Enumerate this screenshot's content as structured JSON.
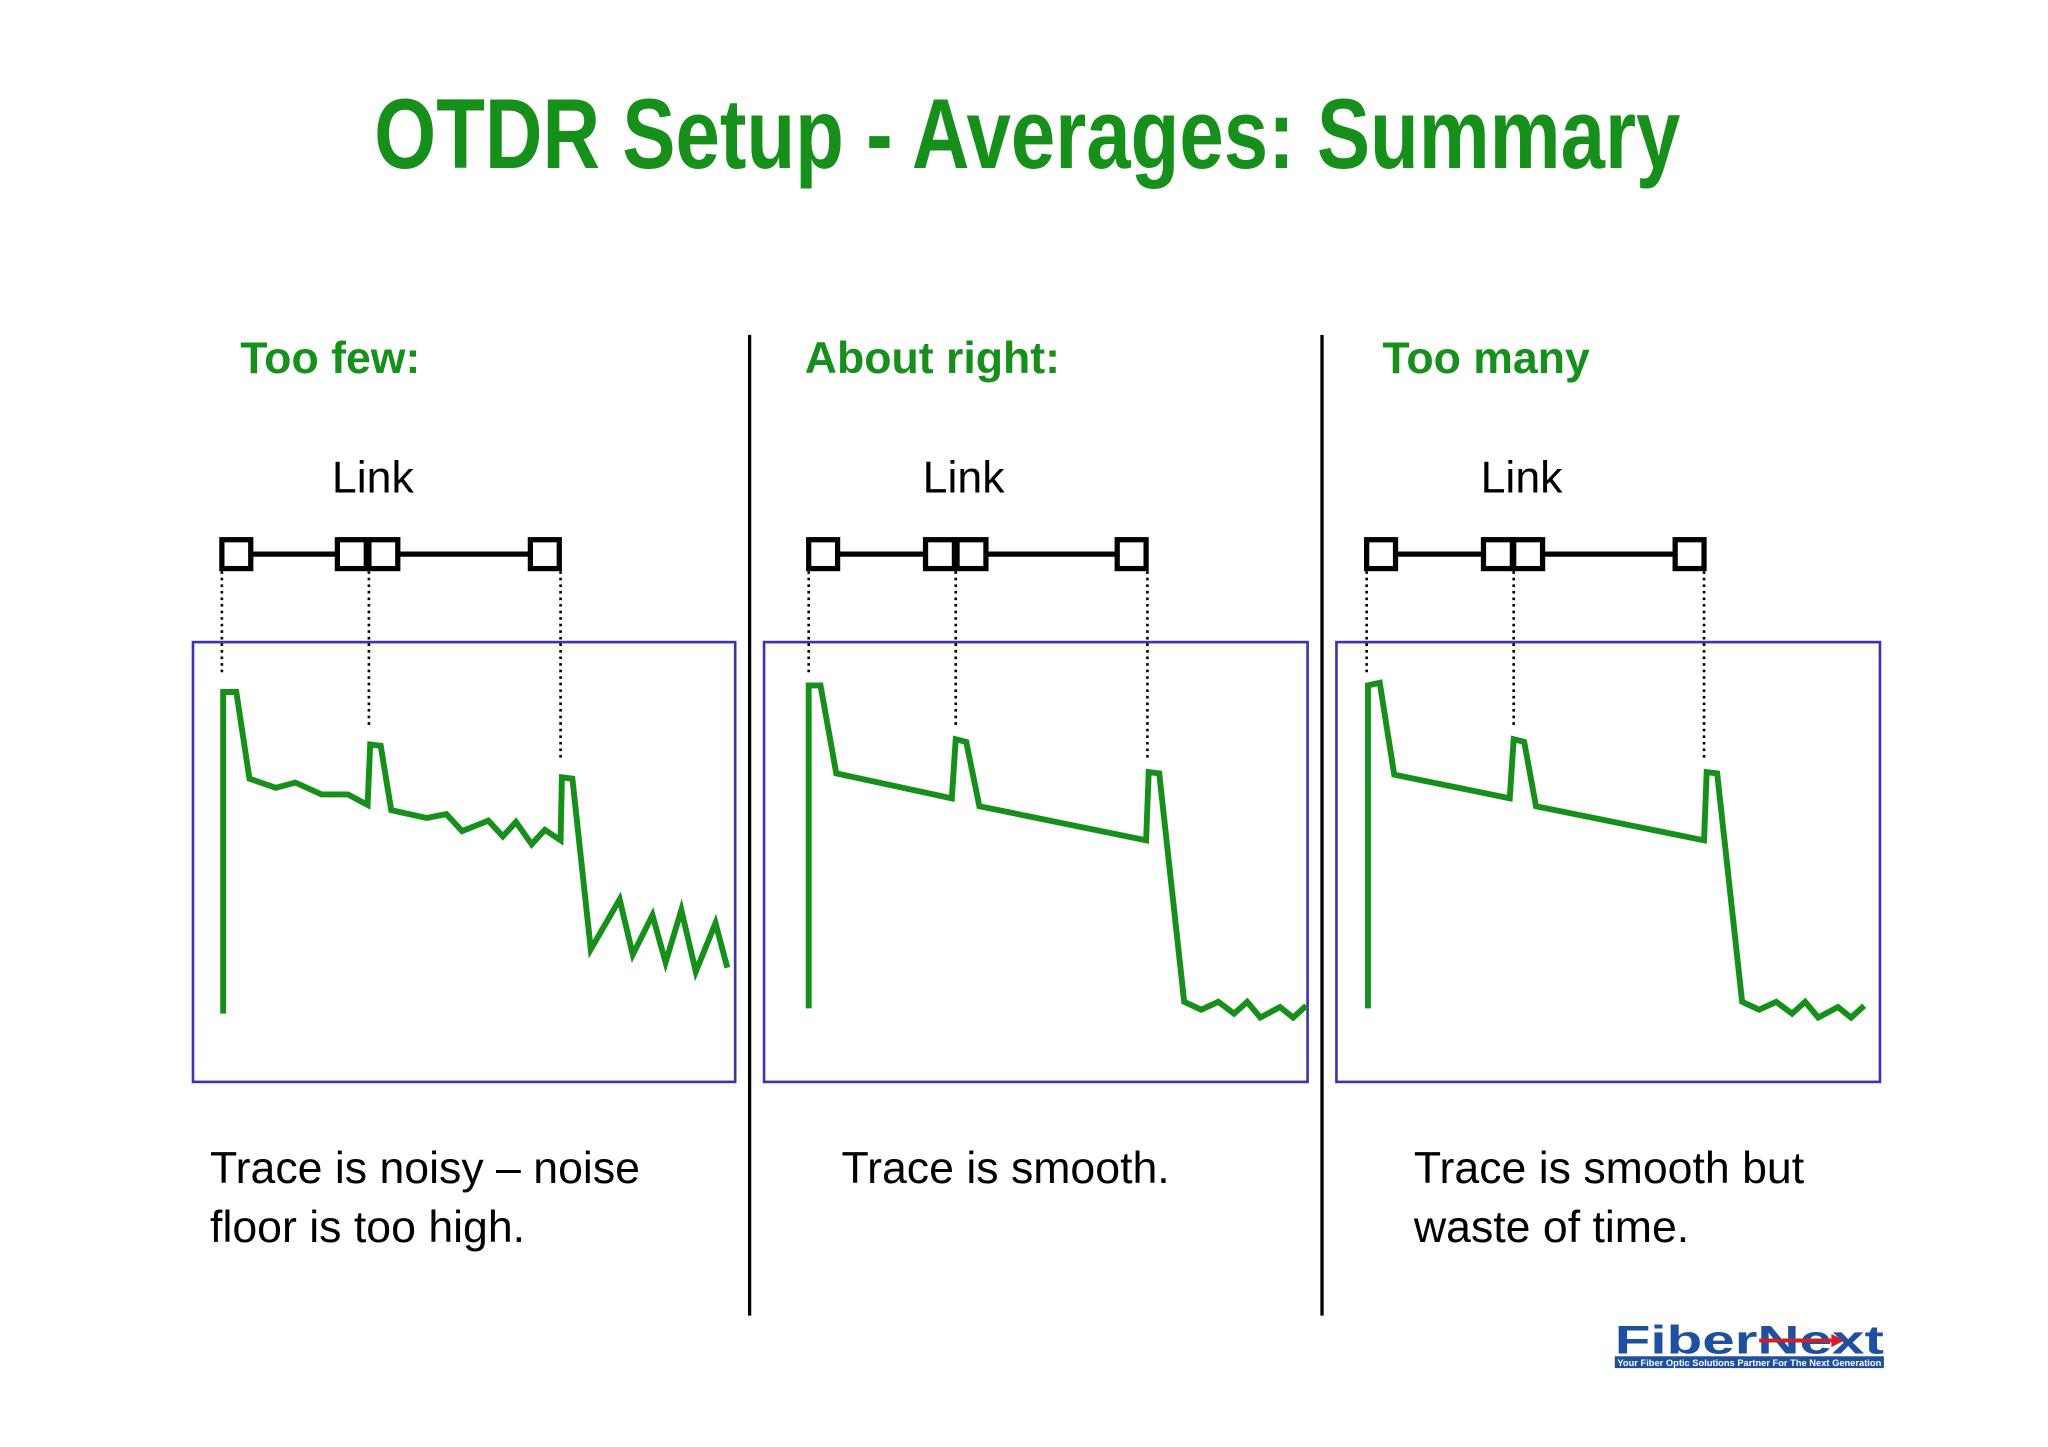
{
  "title": "OTDR Setup - Averages: Summary",
  "panels": [
    {
      "heading": "Too few:",
      "link_label": "Link",
      "caption": [
        "Trace is noisy – noise",
        "floor is too high."
      ]
    },
    {
      "heading": "About right:",
      "link_label": "Link",
      "caption": [
        "Trace is smooth."
      ]
    },
    {
      "heading": "Too many",
      "link_label": "Link",
      "caption": [
        "Trace is smooth but",
        "waste of time."
      ]
    }
  ],
  "logo": {
    "name": "FiberNext",
    "tagline": "Your Fiber Optic Solutions Partner For The Next Generation"
  }
}
